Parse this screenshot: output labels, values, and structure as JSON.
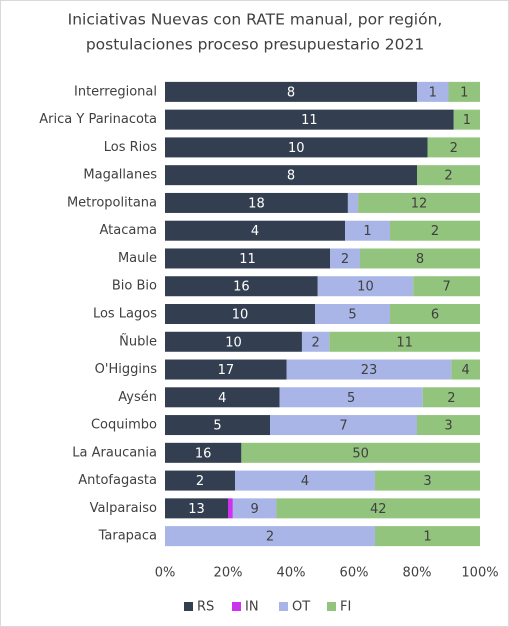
{
  "chart_data": {
    "type": "bar",
    "orientation": "horizontal",
    "stacked": "percent",
    "title": [
      "Iniciativas Nuevas con RATE manual, por región,",
      "postulaciones proceso presupuestario 2021"
    ],
    "categories": [
      "Interregional",
      "Arica Y Parinacota",
      "Los Rios",
      "Magallanes",
      "Metropolitana",
      "Atacama",
      "Maule",
      "Bio Bio",
      "Los Lagos",
      "Ñuble",
      "O'Higgins",
      "Aysén",
      "Coquimbo",
      "La Araucania",
      "Antofagasta",
      "Valparaiso",
      "Tarapaca"
    ],
    "series": [
      {
        "name": "RS",
        "color": "#333f50",
        "label_color": "#ffffff",
        "values": [
          8,
          11,
          10,
          8,
          18,
          4,
          11,
          16,
          10,
          10,
          17,
          4,
          5,
          16,
          2,
          13,
          null
        ]
      },
      {
        "name": "IN",
        "color": "#cc33ee",
        "label_color": "#404040",
        "values": [
          null,
          null,
          null,
          null,
          null,
          null,
          null,
          null,
          null,
          null,
          null,
          null,
          null,
          null,
          null,
          1,
          null
        ],
        "value_labels": [
          null,
          null,
          null,
          null,
          null,
          null,
          null,
          null,
          null,
          null,
          null,
          null,
          null,
          null,
          null,
          null,
          null
        ]
      },
      {
        "name": "OT",
        "color": "#a9b5e6",
        "label_color": "#404040",
        "values": [
          1,
          null,
          null,
          null,
          1,
          1,
          2,
          10,
          5,
          2,
          23,
          5,
          7,
          null,
          4,
          9,
          2
        ],
        "value_labels": [
          "1",
          null,
          null,
          null,
          null,
          "1",
          "2",
          "10",
          "5",
          "2",
          "23",
          "5",
          "7",
          null,
          "4",
          "9",
          "2"
        ]
      },
      {
        "name": "FI",
        "color": "#93c47d",
        "label_color": "#404040",
        "values": [
          1,
          1,
          2,
          2,
          12,
          2,
          8,
          7,
          6,
          11,
          4,
          2,
          3,
          50,
          3,
          42,
          1
        ]
      }
    ],
    "xlim": [
      0,
      100
    ],
    "xticks": [
      {
        "value": 0,
        "label": "0%"
      },
      {
        "value": 20,
        "label": "20%"
      },
      {
        "value": 40,
        "label": "40%"
      },
      {
        "value": 60,
        "label": "60%"
      },
      {
        "value": 80,
        "label": "80%"
      },
      {
        "value": 100,
        "label": "100%"
      }
    ],
    "legend": "bottom"
  }
}
